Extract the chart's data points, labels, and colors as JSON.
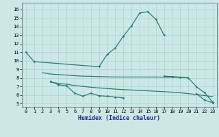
{
  "bg_color": "#b8ddd8",
  "plot_bg_color": "#cce8e4",
  "line_color": "#2a7a70",
  "grid_color": "#b0d8d2",
  "xlabel": "Humidex (Indice chaleur)",
  "xlim": [
    -0.5,
    23.5
  ],
  "ylim": [
    4.6,
    16.8
  ],
  "xticks": [
    0,
    1,
    2,
    3,
    4,
    5,
    6,
    7,
    8,
    9,
    10,
    11,
    12,
    13,
    14,
    15,
    16,
    17,
    18,
    19,
    20,
    21,
    22,
    23
  ],
  "yticks": [
    5,
    6,
    7,
    8,
    9,
    10,
    11,
    12,
    13,
    14,
    15,
    16
  ],
  "curve1_x": [
    0,
    1,
    9,
    10,
    11,
    12,
    13,
    14,
    15,
    16,
    17
  ],
  "curve1_y": [
    11.0,
    9.9,
    9.3,
    10.75,
    11.5,
    12.9,
    14.1,
    15.6,
    15.75,
    14.85,
    13.0
  ],
  "curve2_x": [
    2,
    3,
    4,
    5,
    6,
    7,
    8,
    9,
    10,
    11,
    12,
    13,
    14,
    15,
    16,
    17,
    18,
    19,
    20
  ],
  "curve2_y": [
    8.6,
    8.45,
    8.38,
    8.32,
    8.25,
    8.2,
    8.18,
    8.15,
    8.12,
    8.1,
    8.1,
    8.1,
    8.1,
    8.1,
    8.1,
    8.08,
    8.07,
    8.05,
    8.02
  ],
  "curve3_x": [
    3,
    4,
    5,
    6,
    7,
    8,
    9,
    10,
    11,
    12
  ],
  "curve3_y": [
    7.6,
    7.2,
    7.05,
    6.2,
    5.85,
    6.2,
    5.9,
    5.85,
    5.75,
    5.65
  ],
  "curve4_x": [
    3,
    4,
    5,
    6,
    7,
    8,
    9,
    10,
    11,
    12,
    13,
    14,
    15,
    16,
    17,
    18,
    19,
    20,
    21,
    22,
    23
  ],
  "curve4_y": [
    7.5,
    7.35,
    7.25,
    7.1,
    7.0,
    6.9,
    6.82,
    6.75,
    6.68,
    6.62,
    6.58,
    6.52,
    6.48,
    6.43,
    6.38,
    6.32,
    6.25,
    6.15,
    6.05,
    5.92,
    5.8
  ],
  "curve5_x": [
    17,
    18,
    19,
    20,
    21,
    22,
    23
  ],
  "curve5_y": [
    8.2,
    8.15,
    8.08,
    7.98,
    6.95,
    6.25,
    5.15
  ],
  "curve6_x": [
    21,
    22,
    23
  ],
  "curve6_y": [
    6.15,
    5.38,
    5.1
  ]
}
